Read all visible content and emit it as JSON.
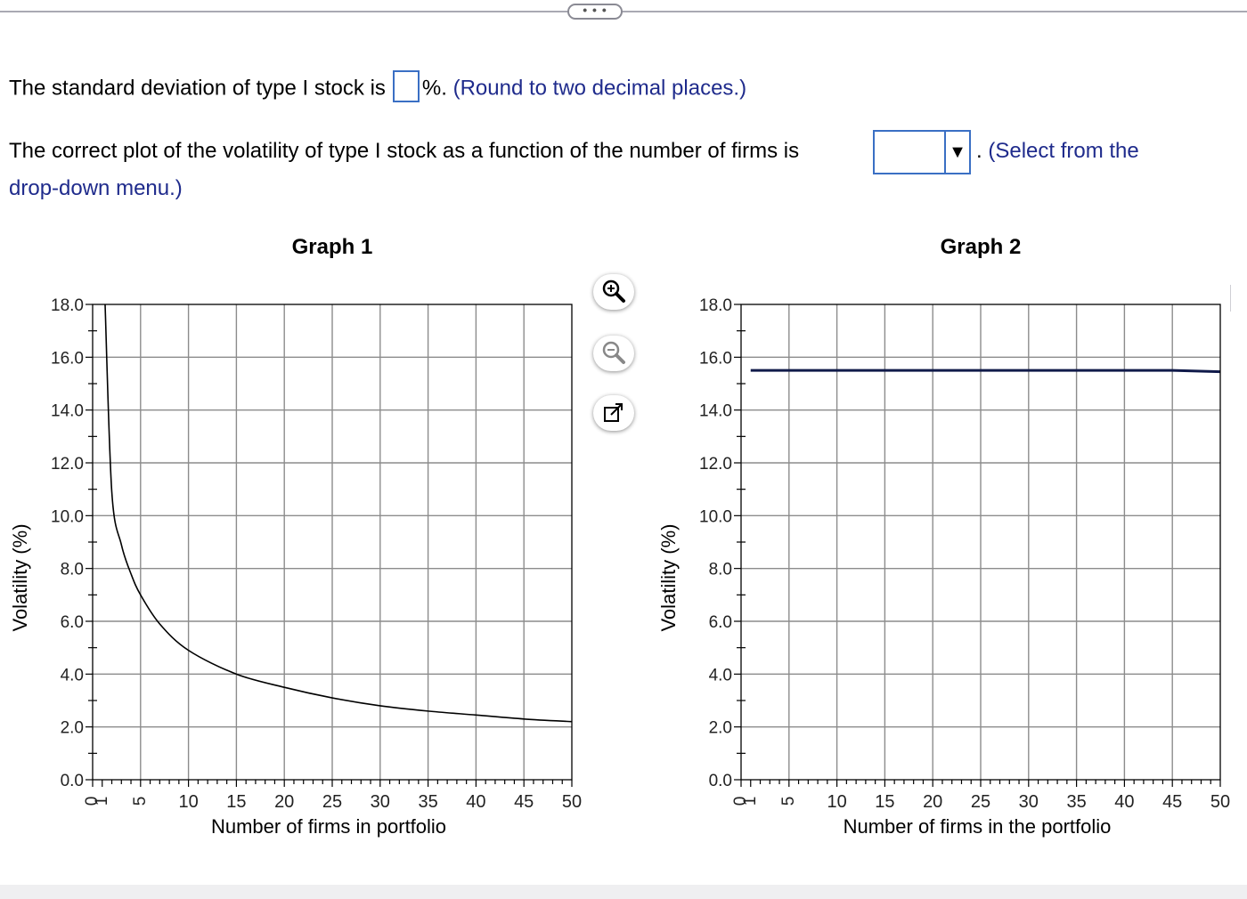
{
  "question1": {
    "text": "The standard deviation of type I stock is",
    "suffix": "%.",
    "hint": "(Round to two decimal places.)",
    "answer_value": ""
  },
  "question2": {
    "text": "The correct plot of the volatility of type I stock as a function of the number of firms is",
    "period": ".",
    "hint_part1": "(Select from the",
    "hint_part2": "drop-down menu.)",
    "selected_value": ""
  },
  "top_bar": {
    "ellipsis_label": "• • •"
  },
  "toolbar": {
    "zoom_in_icon": "zoom-in-icon",
    "zoom_out_icon": "zoom-out-icon",
    "popout_icon": "popout-icon"
  },
  "colors": {
    "hint": "#1f2b8c",
    "input_border": "#3a6fc4",
    "graph1_line": "#000000",
    "graph2_line": "#101a4a",
    "grid": "#8c8c8c"
  },
  "chart_data": [
    {
      "type": "line",
      "title": "Graph 1",
      "xlabel": "Number of firms in portfolio",
      "ylabel": "Volatility (%)",
      "xlim": [
        0,
        50
      ],
      "ylim": [
        0,
        18
      ],
      "x_ticks": [
        "0",
        "1",
        "5",
        "10",
        "15",
        "20",
        "25",
        "30",
        "35",
        "40",
        "45",
        "50"
      ],
      "y_ticks": [
        "0.0",
        "2.0",
        "4.0",
        "6.0",
        "8.0",
        "10.0",
        "12.0",
        "14.0",
        "16.0",
        "18.0"
      ],
      "grid": true,
      "series": [
        {
          "x": [
            1.3,
            2,
            3,
            4,
            5,
            7,
            10,
            15,
            20,
            25,
            30,
            35,
            40,
            45,
            50
          ],
          "y": [
            18.0,
            10.9,
            8.9,
            7.8,
            7.0,
            5.9,
            4.9,
            4.0,
            3.5,
            3.1,
            2.8,
            2.6,
            2.45,
            2.3,
            2.2
          ]
        }
      ]
    },
    {
      "type": "line",
      "title": "Graph 2",
      "xlabel": "Number of firms in the portfolio",
      "ylabel": "Volatility (%)",
      "xlim": [
        0,
        50
      ],
      "ylim": [
        0,
        18
      ],
      "x_ticks": [
        "0",
        "1",
        "5",
        "10",
        "15",
        "20",
        "25",
        "30",
        "35",
        "40",
        "45",
        "50"
      ],
      "y_ticks": [
        "0.0",
        "2.0",
        "4.0",
        "6.0",
        "8.0",
        "10.0",
        "12.0",
        "14.0",
        "16.0",
        "18.0"
      ],
      "grid": true,
      "series": [
        {
          "x": [
            1,
            5,
            10,
            20,
            30,
            40,
            45,
            50
          ],
          "y": [
            15.5,
            15.5,
            15.5,
            15.5,
            15.5,
            15.5,
            15.5,
            15.45
          ]
        }
      ]
    }
  ]
}
